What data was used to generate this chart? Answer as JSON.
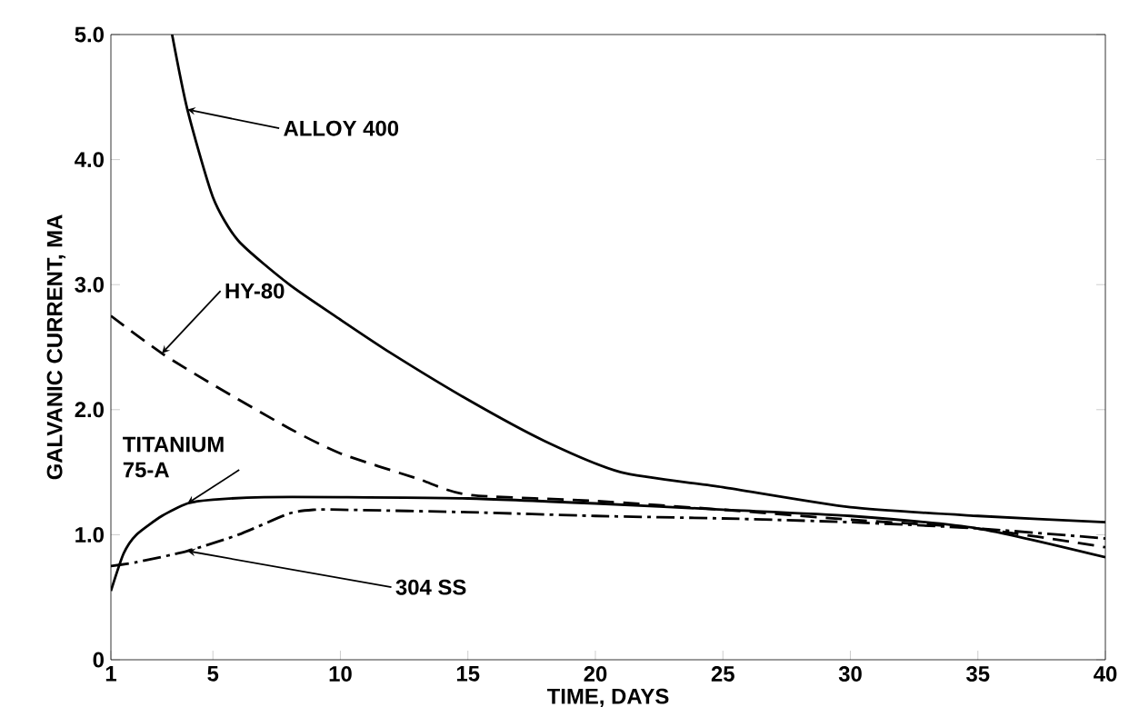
{
  "chart_data": {
    "type": "line",
    "xlabel": "TIME, DAYS",
    "ylabel": "GALVANIC CURRENT, MA",
    "xlim": [
      1,
      40
    ],
    "xticks": [
      {
        "value": 1,
        "label": "1"
      },
      5,
      10,
      15,
      20,
      25,
      30,
      35,
      40
    ],
    "ylim": [
      0,
      5
    ],
    "yticks": [
      {
        "value": 0,
        "label": "0"
      },
      {
        "value": 1,
        "label": "1.0"
      },
      {
        "value": 2,
        "label": "2.0"
      },
      {
        "value": 3,
        "label": "3.0"
      },
      {
        "value": 4,
        "label": "4.0"
      },
      {
        "value": 5,
        "label": "5.0"
      }
    ],
    "series": [
      {
        "name": "ALLOY 400",
        "color": "#000000",
        "line_style": "solid",
        "x": [
          3.4,
          4,
          5,
          6,
          8,
          10,
          12,
          15,
          18,
          21,
          25,
          30,
          35,
          40
        ],
        "values": [
          5.0,
          4.4,
          3.7,
          3.35,
          3.0,
          2.72,
          2.45,
          2.08,
          1.75,
          1.5,
          1.38,
          1.22,
          1.15,
          1.1
        ]
      },
      {
        "name": "HY-80",
        "color": "#000000",
        "line_style": "dashed",
        "x": [
          1,
          3,
          5,
          8,
          10,
          13,
          15,
          20,
          25,
          30,
          35,
          40
        ],
        "values": [
          2.75,
          2.45,
          2.2,
          1.85,
          1.65,
          1.45,
          1.32,
          1.27,
          1.2,
          1.12,
          1.05,
          0.9
        ]
      },
      {
        "name": "TITANIUM 75-A",
        "color": "#000000",
        "line_style": "solid",
        "x": [
          1,
          1.5,
          2,
          3,
          4,
          5,
          7,
          10,
          15,
          20,
          25,
          30,
          35,
          40
        ],
        "values": [
          0.55,
          0.85,
          1.0,
          1.15,
          1.25,
          1.28,
          1.3,
          1.3,
          1.29,
          1.25,
          1.2,
          1.15,
          1.05,
          0.82
        ]
      },
      {
        "name": "304 SS",
        "color": "#000000",
        "line_style": "dashdot",
        "x": [
          1,
          2,
          4,
          6,
          8,
          9,
          10,
          15,
          20,
          25,
          30,
          35,
          40
        ],
        "values": [
          0.75,
          0.78,
          0.87,
          1.0,
          1.17,
          1.2,
          1.2,
          1.18,
          1.15,
          1.13,
          1.1,
          1.05,
          0.97
        ]
      }
    ]
  }
}
